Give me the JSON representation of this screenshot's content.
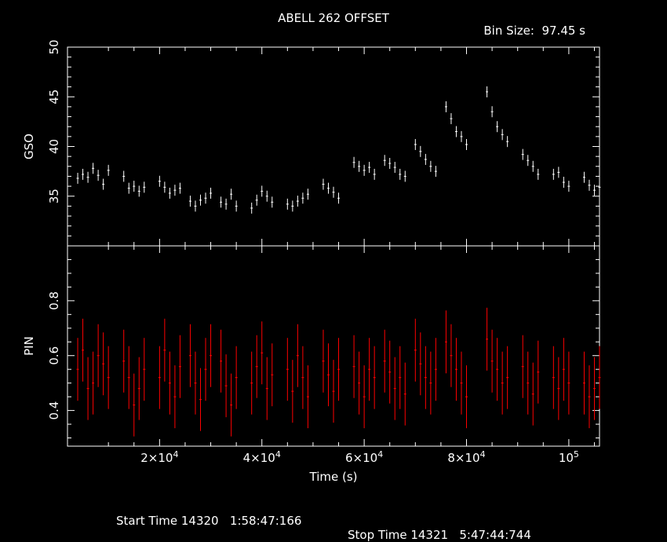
{
  "title": "ABELL 262 OFFSET",
  "bin_size_label": "Bin Size:  97.45 s",
  "footer": {
    "start": "Start Time 14320   1:58:47:166",
    "stop": "Stop Time 14321   5:47:44:744"
  },
  "colors": {
    "background": "#000000",
    "axes": "#ffffff",
    "gso": "#ffffff",
    "pin": "#ff0000"
  },
  "chart_data": [
    {
      "type": "scatter",
      "panel": "top",
      "ylabel": "GSO",
      "xlabel": "Time (s)",
      "xlim": [
        2000,
        106000
      ],
      "ylim": [
        30,
        50
      ],
      "yticks": [
        35,
        40,
        45,
        50
      ],
      "xtick_labels": [
        "2×10^4",
        "4×10^4",
        "6×10^4",
        "8×10^4",
        "10^5"
      ],
      "xticks": [
        20000,
        40000,
        60000,
        80000,
        100000
      ],
      "series": [
        {
          "points": [
            [
              4000,
              36.8
            ],
            [
              5000,
              37.2
            ],
            [
              6000,
              36.9
            ],
            [
              7000,
              37.8
            ],
            [
              8000,
              37.1
            ],
            [
              9000,
              36.2
            ],
            [
              10000,
              37.6
            ],
            [
              13000,
              37.0
            ],
            [
              14000,
              35.8
            ],
            [
              15000,
              36.0
            ],
            [
              16000,
              35.5
            ],
            [
              17000,
              35.9
            ],
            [
              20000,
              36.5
            ],
            [
              21000,
              35.9
            ],
            [
              22000,
              35.3
            ],
            [
              23000,
              35.6
            ],
            [
              24000,
              35.8
            ],
            [
              26000,
              34.5
            ],
            [
              27000,
              34.0
            ],
            [
              28000,
              34.6
            ],
            [
              29000,
              34.8
            ],
            [
              30000,
              35.3
            ],
            [
              32000,
              34.4
            ],
            [
              33000,
              34.2
            ],
            [
              34000,
              35.2
            ],
            [
              35000,
              34.0
            ],
            [
              38000,
              33.8
            ],
            [
              39000,
              34.6
            ],
            [
              40000,
              35.5
            ],
            [
              41000,
              35.0
            ],
            [
              42000,
              34.4
            ],
            [
              45000,
              34.2
            ],
            [
              46000,
              34.0
            ],
            [
              47000,
              34.5
            ],
            [
              48000,
              34.8
            ],
            [
              49000,
              35.2
            ],
            [
              52000,
              36.2
            ],
            [
              53000,
              35.8
            ],
            [
              54000,
              35.4
            ],
            [
              55000,
              34.8
            ],
            [
              58000,
              38.4
            ],
            [
              59000,
              38.0
            ],
            [
              60000,
              37.6
            ],
            [
              61000,
              37.9
            ],
            [
              62000,
              37.2
            ],
            [
              64000,
              38.6
            ],
            [
              65000,
              38.3
            ],
            [
              66000,
              37.9
            ],
            [
              67000,
              37.2
            ],
            [
              68000,
              37.0
            ],
            [
              70000,
              40.2
            ],
            [
              71000,
              39.5
            ],
            [
              72000,
              38.7
            ],
            [
              73000,
              38.0
            ],
            [
              74000,
              37.5
            ],
            [
              76000,
              44.0
            ],
            [
              77000,
              42.8
            ],
            [
              78000,
              41.5
            ],
            [
              79000,
              41.0
            ],
            [
              80000,
              40.2
            ],
            [
              84000,
              45.5
            ],
            [
              85000,
              43.5
            ],
            [
              86000,
              42.0
            ],
            [
              87000,
              41.2
            ],
            [
              88000,
              40.5
            ],
            [
              91000,
              39.2
            ],
            [
              92000,
              38.6
            ],
            [
              93000,
              38.0
            ],
            [
              94000,
              37.2
            ],
            [
              97000,
              37.2
            ],
            [
              98000,
              37.4
            ],
            [
              99000,
              36.4
            ],
            [
              100000,
              36.0
            ],
            [
              103000,
              36.9
            ],
            [
              104000,
              36.1
            ],
            [
              105000,
              35.6
            ],
            [
              106000,
              35.9
            ]
          ]
        }
      ]
    },
    {
      "type": "scatter",
      "panel": "bottom",
      "ylabel": "PIN",
      "xlabel": "Time (s)",
      "xlim": [
        2000,
        106000
      ],
      "ylim": [
        0.27,
        1.0
      ],
      "yticks": [
        0.4,
        0.6,
        0.8
      ],
      "series": [
        {
          "points": [
            [
              4000,
              0.55
            ],
            [
              5000,
              0.62
            ],
            [
              6000,
              0.48
            ],
            [
              7000,
              0.5
            ],
            [
              8000,
              0.6
            ],
            [
              9000,
              0.57
            ],
            [
              10000,
              0.52
            ],
            [
              13000,
              0.58
            ],
            [
              14000,
              0.52
            ],
            [
              15000,
              0.42
            ],
            [
              16000,
              0.48
            ],
            [
              17000,
              0.55
            ],
            [
              20000,
              0.52
            ],
            [
              21000,
              0.62
            ],
            [
              22000,
              0.5
            ],
            [
              23000,
              0.45
            ],
            [
              24000,
              0.56
            ],
            [
              26000,
              0.6
            ],
            [
              27000,
              0.5
            ],
            [
              28000,
              0.44
            ],
            [
              29000,
              0.55
            ],
            [
              30000,
              0.6
            ],
            [
              32000,
              0.58
            ],
            [
              33000,
              0.49
            ],
            [
              34000,
              0.42
            ],
            [
              35000,
              0.52
            ],
            [
              38000,
              0.5
            ],
            [
              39000,
              0.56
            ],
            [
              40000,
              0.61
            ],
            [
              41000,
              0.48
            ],
            [
              42000,
              0.53
            ],
            [
              45000,
              0.55
            ],
            [
              46000,
              0.47
            ],
            [
              47000,
              0.6
            ],
            [
              48000,
              0.52
            ],
            [
              49000,
              0.45
            ],
            [
              52000,
              0.58
            ],
            [
              53000,
              0.53
            ],
            [
              54000,
              0.47
            ],
            [
              55000,
              0.55
            ],
            [
              58000,
              0.56
            ],
            [
              59000,
              0.5
            ],
            [
              60000,
              0.45
            ],
            [
              61000,
              0.55
            ],
            [
              62000,
              0.52
            ],
            [
              64000,
              0.58
            ],
            [
              65000,
              0.54
            ],
            [
              66000,
              0.48
            ],
            [
              67000,
              0.52
            ],
            [
              68000,
              0.46
            ],
            [
              70000,
              0.62
            ],
            [
              71000,
              0.57
            ],
            [
              72000,
              0.52
            ],
            [
              73000,
              0.5
            ],
            [
              74000,
              0.55
            ],
            [
              76000,
              0.65
            ],
            [
              77000,
              0.6
            ],
            [
              78000,
              0.55
            ],
            [
              79000,
              0.5
            ],
            [
              80000,
              0.45
            ],
            [
              84000,
              0.66
            ],
            [
              85000,
              0.58
            ],
            [
              86000,
              0.55
            ],
            [
              87000,
              0.5
            ],
            [
              88000,
              0.52
            ],
            [
              91000,
              0.56
            ],
            [
              92000,
              0.5
            ],
            [
              93000,
              0.46
            ],
            [
              94000,
              0.54
            ],
            [
              97000,
              0.52
            ],
            [
              98000,
              0.48
            ],
            [
              99000,
              0.55
            ],
            [
              100000,
              0.5
            ],
            [
              103000,
              0.5
            ],
            [
              104000,
              0.45
            ],
            [
              105000,
              0.48
            ],
            [
              106000,
              0.52
            ]
          ]
        }
      ]
    }
  ]
}
